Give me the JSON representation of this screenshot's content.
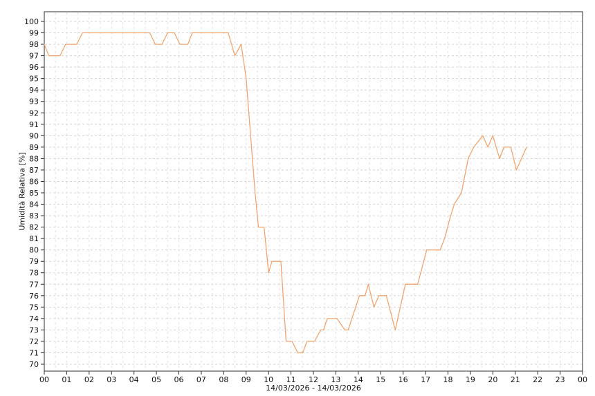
{
  "chart_data": {
    "type": "line",
    "title": "",
    "ylabel": "Umidità Relativa [%]",
    "xlabel": "14/03/2026 - 14/03/2026",
    "legend": null,
    "grid": "on, dashed, minor vertical gridlines every 30 min, horizontal every 1 unit",
    "x_tick_labels": [
      "00",
      "01",
      "02",
      "03",
      "04",
      "05",
      "06",
      "07",
      "08",
      "09",
      "10",
      "11",
      "12",
      "13",
      "14",
      "15",
      "16",
      "17",
      "18",
      "19",
      "20",
      "21",
      "22",
      "23",
      "00"
    ],
    "x_hours_span": 24,
    "y_min": 70,
    "y_max": 100,
    "y_step": 1,
    "line_color": "#f2a46e",
    "h_grid_color": "#d4d4d4",
    "v_grid_color": "#e0e0e0",
    "frame_color": "#2b2b2b",
    "text_color": "#111111",
    "series": [
      {
        "name": "Umidità Relativa [%]",
        "points_hour_value": [
          [
            0,
            98
          ],
          [
            0.2,
            97
          ],
          [
            0.7,
            97
          ],
          [
            0.95,
            98
          ],
          [
            1.45,
            98
          ],
          [
            1.7,
            99
          ],
          [
            4.7,
            99
          ],
          [
            4.95,
            98
          ],
          [
            5.25,
            98
          ],
          [
            5.5,
            99
          ],
          [
            5.8,
            99
          ],
          [
            6.05,
            98
          ],
          [
            6.4,
            98
          ],
          [
            6.6,
            99
          ],
          [
            8.2,
            99
          ],
          [
            8.5,
            97
          ],
          [
            8.78,
            98
          ],
          [
            9.0,
            95
          ],
          [
            9.4,
            85
          ],
          [
            9.55,
            82
          ],
          [
            9.8,
            82
          ],
          [
            10.0,
            78
          ],
          [
            10.15,
            79
          ],
          [
            10.55,
            79
          ],
          [
            10.78,
            72
          ],
          [
            11.05,
            72
          ],
          [
            11.3,
            71
          ],
          [
            11.52,
            71
          ],
          [
            11.72,
            72
          ],
          [
            12.05,
            72
          ],
          [
            12.33,
            73
          ],
          [
            12.45,
            73
          ],
          [
            12.62,
            74
          ],
          [
            13.05,
            74
          ],
          [
            13.4,
            73
          ],
          [
            13.55,
            73
          ],
          [
            14.05,
            76
          ],
          [
            14.3,
            76
          ],
          [
            14.45,
            77
          ],
          [
            14.7,
            75
          ],
          [
            14.92,
            76
          ],
          [
            15.25,
            76
          ],
          [
            15.65,
            73
          ],
          [
            16.1,
            77
          ],
          [
            16.65,
            77
          ],
          [
            17.05,
            80
          ],
          [
            17.65,
            80
          ],
          [
            17.85,
            81
          ],
          [
            18.12,
            83
          ],
          [
            18.28,
            84
          ],
          [
            18.6,
            85
          ],
          [
            18.9,
            88
          ],
          [
            19.15,
            89
          ],
          [
            19.55,
            90
          ],
          [
            19.78,
            89
          ],
          [
            20.0,
            90
          ],
          [
            20.3,
            88
          ],
          [
            20.5,
            89
          ],
          [
            20.8,
            89
          ],
          [
            21.05,
            87
          ],
          [
            21.5,
            89
          ]
        ]
      }
    ]
  }
}
